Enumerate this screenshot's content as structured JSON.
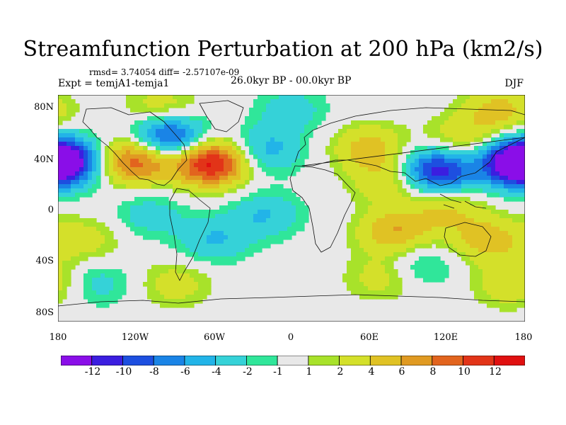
{
  "title": "Streamfunction Perturbation at 200 hPa (km2/s)",
  "stats": "rmsd= 3.74054 diff= -2.57107e-09",
  "experiment": "Expt = temjA1-temja1",
  "period": "26.0kyr BP - 00.0kyr BP",
  "season": "DJF",
  "lat_labels": [
    "80N",
    "40N",
    "0",
    "40S",
    "80S"
  ],
  "lon_labels": [
    "180",
    "120W",
    "60W",
    "0",
    "60E",
    "120E",
    "180"
  ],
  "colorbar": {
    "labels": [
      "-12",
      "-10",
      "-8",
      "-6",
      "-4",
      "-2",
      "-1",
      "1",
      "2",
      "4",
      "6",
      "8",
      "10",
      "12"
    ],
    "colors": [
      "#8a0ee8",
      "#3b1ee0",
      "#1d4fe0",
      "#1a84e6",
      "#22b4e8",
      "#35d2d8",
      "#30e69a",
      "#e8e8e8",
      "#a8e22a",
      "#d4e02a",
      "#e0c224",
      "#e09a22",
      "#e2641e",
      "#e23418",
      "#e01010"
    ]
  },
  "map_field": {
    "projection": "cylindrical-equidistant",
    "lon_range": [
      -180,
      180
    ],
    "lat_range": [
      -90,
      90
    ],
    "centers": [
      {
        "lon": -177,
        "lat": 38,
        "value": -12
      },
      {
        "lon": -95,
        "lat": 57,
        "value": -11
      },
      {
        "lon": -120,
        "lat": 38,
        "value": 10
      },
      {
        "lon": -62,
        "lat": 36,
        "value": 13
      },
      {
        "lon": -20,
        "lat": 46,
        "value": -5
      },
      {
        "lon": 113,
        "lat": 30,
        "value": -12
      },
      {
        "lon": 173,
        "lat": 35,
        "value": -10
      },
      {
        "lon": 60,
        "lat": 48,
        "value": 5
      },
      {
        "lon": 130,
        "lat": 53,
        "value": 4
      },
      {
        "lon": 160,
        "lat": 77,
        "value": 5
      },
      {
        "lon": 75,
        "lat": 22,
        "value": 4
      },
      {
        "lon": 120,
        "lat": 0,
        "value": 4
      },
      {
        "lon": 80,
        "lat": -19,
        "value": 6
      },
      {
        "lon": 150,
        "lat": -25,
        "value": 5
      },
      {
        "lon": 170,
        "lat": -60,
        "value": 4
      },
      {
        "lon": 70,
        "lat": -55,
        "value": 3
      },
      {
        "lon": -20,
        "lat": -5,
        "value": -4
      },
      {
        "lon": -60,
        "lat": -25,
        "value": -4
      },
      {
        "lon": -110,
        "lat": -5,
        "value": -3
      },
      {
        "lon": -150,
        "lat": -60,
        "value": -3
      },
      {
        "lon": 100,
        "lat": -45,
        "value": -3
      },
      {
        "lon": -160,
        "lat": -25,
        "value": 3
      },
      {
        "lon": -90,
        "lat": -60,
        "value": 3
      },
      {
        "lon": 0,
        "lat": 78,
        "value": -3
      },
      {
        "lon": -100,
        "lat": 78,
        "value": 4
      }
    ]
  }
}
